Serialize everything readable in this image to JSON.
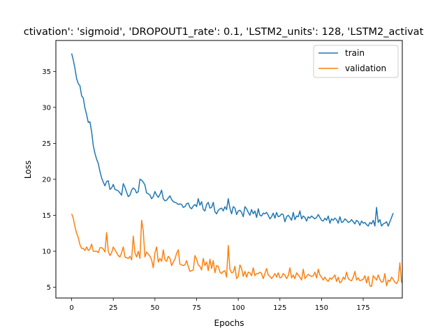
{
  "chart_data": {
    "type": "line",
    "title": "ctivation': 'sigmoid', 'DROPOUT1_rate': 0.1, 'LSTM2_units': 128, 'LSTM2_activat",
    "xlabel": "Epochs",
    "ylabel": "Loss",
    "xlim": [
      -9.45,
      198.45
    ],
    "ylim": [
      3.5,
      39.3
    ],
    "xticks": [
      0,
      25,
      50,
      75,
      100,
      125,
      150,
      175
    ],
    "yticks": [
      5,
      10,
      15,
      20,
      25,
      30,
      35
    ],
    "grid": false,
    "legend_position": "top-right",
    "series": [
      {
        "name": "train",
        "color": "#1f77b4",
        "x_start": 0,
        "x_step": 1,
        "values": [
          37.5,
          36.6,
          35.4,
          34.0,
          33.3,
          33.0,
          31.6,
          31.3,
          29.9,
          29.0,
          27.9,
          28.0,
          26.6,
          24.7,
          23.6,
          22.8,
          22.2,
          21.1,
          20.2,
          19.6,
          19.1,
          19.7,
          19.8,
          18.6,
          18.8,
          19.3,
          18.6,
          18.5,
          18.4,
          18.1,
          17.8,
          19.4,
          18.9,
          18.2,
          17.6,
          17.8,
          18.5,
          18.8,
          18.6,
          18.1,
          18.3,
          20.0,
          19.9,
          19.6,
          19.2,
          18.1,
          18.0,
          17.8,
          17.3,
          17.6,
          18.3,
          17.8,
          17.5,
          17.9,
          18.5,
          17.3,
          17.0,
          17.1,
          17.4,
          17.7,
          17.2,
          16.9,
          16.8,
          16.7,
          16.5,
          16.6,
          16.5,
          16.1,
          16.2,
          16.6,
          16.7,
          16.1,
          15.9,
          16.3,
          16.5,
          16.2,
          17.3,
          16.4,
          16.9,
          15.8,
          15.6,
          16.5,
          16.8,
          16.0,
          16.1,
          16.8,
          15.5,
          15.2,
          15.7,
          15.9,
          16.0,
          15.6,
          16.2,
          15.8,
          17.3,
          16.0,
          15.2,
          16.2,
          16.0,
          15.1,
          15.6,
          15.7,
          15.4,
          14.8,
          16.2,
          15.9,
          15.4,
          15.0,
          15.8,
          15.2,
          15.6,
          14.7,
          15.9,
          15.0,
          14.9,
          15.3,
          15.2,
          15.4,
          15.0,
          14.5,
          14.8,
          15.3,
          14.6,
          15.4,
          14.8,
          14.9,
          15.2,
          15.1,
          14.1,
          14.8,
          15.0,
          14.7,
          14.3,
          15.4,
          14.4,
          14.9,
          14.8,
          15.6,
          14.5,
          14.9,
          14.7,
          14.2,
          14.8,
          14.6,
          14.9,
          14.7,
          14.5,
          14.7,
          15.1,
          14.7,
          14.3,
          14.2,
          14.6,
          14.3,
          14.9,
          13.9,
          14.5,
          14.3,
          14.6,
          14.4,
          13.9,
          14.8,
          14.0,
          14.1,
          14.5,
          14.3,
          14.0,
          14.1,
          14.4,
          14.1,
          13.8,
          14.3,
          14.1,
          13.6,
          14.2,
          13.9,
          14.0,
          13.7,
          13.5,
          14.0,
          13.8,
          14.3,
          13.5,
          16.1,
          14.0,
          14.4,
          13.5,
          13.8,
          13.9,
          14.1,
          13.5,
          14.1,
          14.7,
          15.3
        ]
      },
      {
        "name": "validation",
        "color": "#ff7f0e",
        "x_start": 0,
        "x_step": 1,
        "values": [
          15.2,
          14.6,
          13.4,
          12.5,
          11.9,
          10.9,
          10.4,
          10.4,
          10.1,
          10.6,
          10.1,
          10.3,
          11.0,
          10.0,
          10.0,
          10.0,
          9.8,
          10.5,
          10.5,
          10.3,
          9.9,
          12.6,
          10.0,
          9.4,
          9.8,
          10.6,
          10.2,
          9.8,
          9.4,
          9.2,
          9.8,
          10.6,
          9.2,
          9.1,
          9.0,
          9.3,
          8.8,
          12.1,
          9.8,
          9.2,
          10.0,
          9.0,
          14.3,
          12.8,
          9.2,
          9.9,
          9.6,
          9.3,
          8.8,
          7.7,
          9.8,
          10.6,
          8.5,
          9.0,
          8.6,
          10.2,
          8.8,
          8.6,
          9.3,
          9.0,
          8.0,
          8.5,
          8.9,
          9.7,
          10.2,
          8.2,
          8.1,
          8.0,
          8.1,
          8.7,
          7.9,
          7.2,
          7.3,
          7.4,
          9.4,
          8.9,
          8.1,
          7.9,
          7.4,
          9.0,
          8.0,
          8.5,
          7.3,
          8.9,
          7.6,
          8.7,
          7.0,
          8.0,
          7.9,
          7.1,
          6.9,
          7.2,
          7.3,
          6.4,
          10.8,
          7.5,
          7.0,
          7.1,
          7.9,
          6.2,
          6.5,
          8.1,
          7.6,
          6.5,
          7.2,
          6.4,
          7.1,
          7.0,
          6.6,
          7.7,
          6.6,
          6.9,
          6.9,
          7.1,
          6.9,
          6.2,
          6.9,
          7.6,
          6.7,
          6.5,
          6.2,
          6.5,
          6.9,
          6.4,
          7.0,
          6.3,
          6.4,
          6.9,
          6.7,
          6.2,
          6.6,
          7.7,
          6.3,
          6.7,
          6.2,
          7.0,
          6.7,
          6.4,
          6.0,
          7.5,
          6.2,
          6.5,
          6.8,
          6.6,
          6.5,
          6.6,
          7.1,
          6.3,
          7.5,
          6.7,
          6.4,
          6.0,
          6.4,
          6.0,
          5.8,
          6.3,
          6.1,
          6.4,
          6.7,
          5.8,
          6.4,
          5.6,
          5.8,
          6.4,
          6.1,
          7.1,
          6.2,
          6.0,
          5.9,
          6.4,
          7.2,
          6.0,
          6.3,
          5.9,
          6.0,
          6.1,
          6.6,
          5.6,
          6.5,
          5.2,
          5.1,
          6.6,
          6.3,
          6.0,
          6.7,
          6.1,
          5.7,
          5.8,
          6.9,
          5.2,
          6.0,
          5.8,
          6.4,
          6.1,
          5.7,
          5.5,
          5.9,
          8.4,
          5.6
        ]
      }
    ]
  }
}
